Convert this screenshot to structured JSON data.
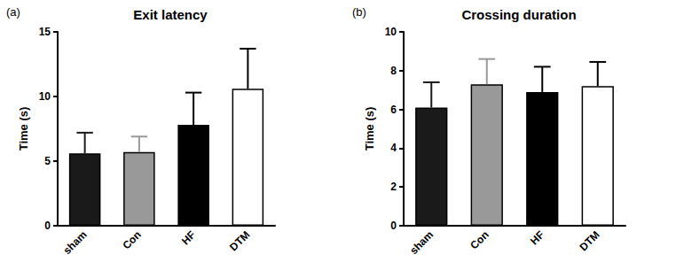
{
  "chart_data": [
    {
      "type": "bar",
      "panel_label": "(a)",
      "title": "Exit latency",
      "ylabel": "Time (s)",
      "categories": [
        "sham",
        "Con",
        "HF",
        "DTM"
      ],
      "values": [
        5.6,
        5.7,
        7.8,
        10.6
      ],
      "errors": [
        1.6,
        1.2,
        2.5,
        3.1
      ],
      "colors": [
        "#1a1a1a",
        "#999999",
        "#000000",
        "#ffffff"
      ],
      "ylim": [
        0,
        15
      ],
      "yticks": [
        0,
        5,
        10,
        15
      ],
      "grid": false
    },
    {
      "type": "bar",
      "panel_label": "(b)",
      "title": "Crossing duration",
      "ylabel": "Time (s)",
      "categories": [
        "sham",
        "Con",
        "HF",
        "DTM"
      ],
      "values": [
        6.1,
        7.3,
        6.9,
        7.2
      ],
      "errors": [
        1.3,
        1.3,
        1.3,
        1.25
      ],
      "colors": [
        "#1a1a1a",
        "#999999",
        "#000000",
        "#ffffff"
      ],
      "ylim": [
        0,
        10
      ],
      "yticks": [
        0,
        2,
        4,
        6,
        8,
        10
      ],
      "grid": false
    }
  ]
}
